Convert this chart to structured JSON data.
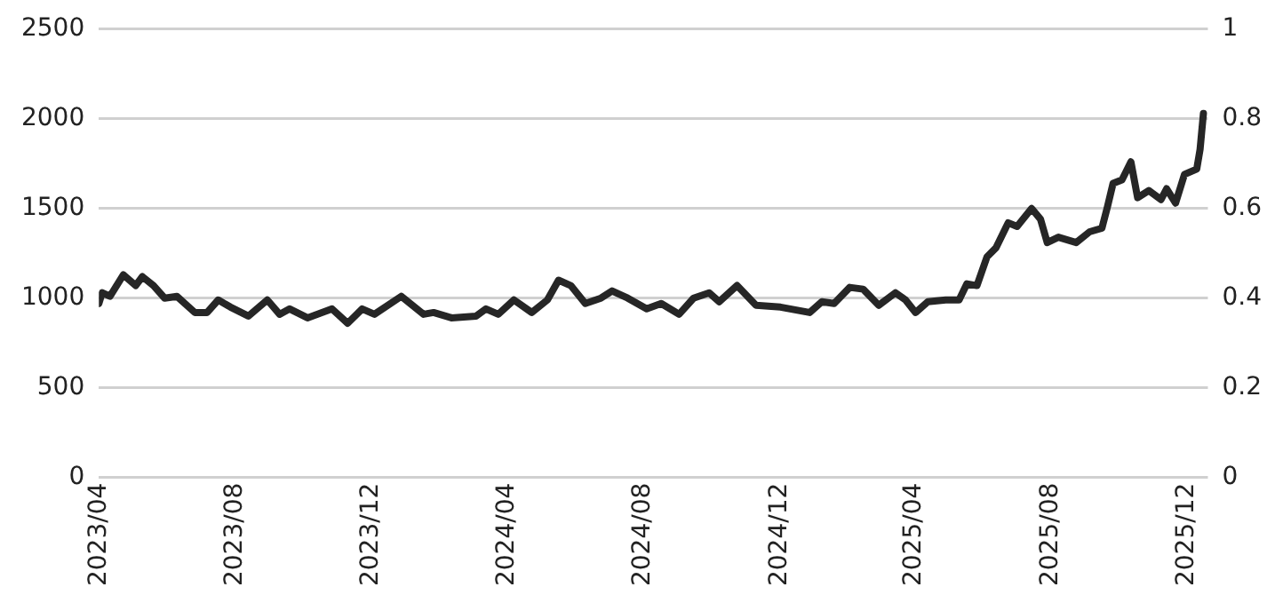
{
  "chart_data": {
    "type": "line",
    "x": [
      "2023-04-01",
      "2023-04-04",
      "2023-04-11",
      "2023-04-23",
      "2023-05-04",
      "2023-05-10",
      "2023-05-20",
      "2023-05-30",
      "2023-06-10",
      "2023-06-26",
      "2023-07-07",
      "2023-07-17",
      "2023-07-28",
      "2023-08-13",
      "2023-08-30",
      "2023-09-10",
      "2023-09-19",
      "2023-10-05",
      "2023-10-27",
      "2023-11-10",
      "2023-11-23",
      "2023-12-04",
      "2023-12-28",
      "2024-01-17",
      "2024-01-26",
      "2024-02-11",
      "2024-03-04",
      "2024-03-13",
      "2024-03-24",
      "2024-04-07",
      "2024-04-23",
      "2024-05-07",
      "2024-05-17",
      "2024-05-28",
      "2024-06-10",
      "2024-06-24",
      "2024-07-04",
      "2024-07-18",
      "2024-08-04",
      "2024-08-17",
      "2024-09-02",
      "2024-09-15",
      "2024-09-29",
      "2024-10-08",
      "2024-10-24",
      "2024-11-10",
      "2024-12-02",
      "2024-12-28",
      "2025-01-08",
      "2025-01-19",
      "2025-02-02",
      "2025-02-14",
      "2025-02-28",
      "2025-03-15",
      "2025-03-24",
      "2025-04-02",
      "2025-04-13",
      "2025-04-29",
      "2025-05-11",
      "2025-05-18",
      "2025-05-27",
      "2025-06-05",
      "2025-06-13",
      "2025-06-24",
      "2025-07-02",
      "2025-07-15",
      "2025-07-23",
      "2025-07-29",
      "2025-08-08",
      "2025-08-24",
      "2025-09-05",
      "2025-09-16",
      "2025-09-21",
      "2025-09-26",
      "2025-10-04",
      "2025-10-12",
      "2025-10-18",
      "2025-10-28",
      "2025-11-08",
      "2025-11-13",
      "2025-11-21",
      "2025-11-29",
      "2025-12-10",
      "2025-12-13",
      "2025-12-16"
    ],
    "series": [
      {
        "color": "#262626",
        "values": [
          970,
          1030,
          1010,
          1130,
          1070,
          1120,
          1070,
          1000,
          1010,
          920,
          920,
          990,
          950,
          900,
          990,
          910,
          940,
          890,
          940,
          860,
          940,
          910,
          1010,
          910,
          920,
          890,
          900,
          940,
          910,
          990,
          920,
          990,
          1100,
          1070,
          970,
          1000,
          1040,
          1000,
          940,
          970,
          910,
          1000,
          1030,
          980,
          1070,
          960,
          950,
          920,
          980,
          970,
          1060,
          1050,
          960,
          1030,
          990,
          920,
          980,
          990,
          990,
          1080,
          1070,
          1230,
          1280,
          1420,
          1400,
          1500,
          1440,
          1310,
          1340,
          1310,
          1370,
          1390,
          1510,
          1640,
          1660,
          1760,
          1560,
          1600,
          1550,
          1610,
          1530,
          1690,
          1720,
          1830,
          2030
        ]
      }
    ],
    "xlim": [
      "2023-04-01",
      "2025-12-20"
    ],
    "xticks": [
      {
        "value": "2023-04-01",
        "label": "2023/04"
      },
      {
        "value": "2023-08-01",
        "label": "2023/08"
      },
      {
        "value": "2023-12-01",
        "label": "2023/12"
      },
      {
        "value": "2024-04-01",
        "label": "2024/04"
      },
      {
        "value": "2024-08-01",
        "label": "2024/08"
      },
      {
        "value": "2024-12-01",
        "label": "2024/12"
      },
      {
        "value": "2025-04-01",
        "label": "2025/04"
      },
      {
        "value": "2025-08-01",
        "label": "2025/08"
      },
      {
        "value": "2025-12-01",
        "label": "2025/12"
      }
    ],
    "ylim": [
      0,
      2500
    ],
    "yticks": [
      0,
      500,
      1000,
      1500,
      2000,
      2500
    ],
    "y2lim": [
      0,
      1
    ],
    "y2ticks": [
      0,
      0.2,
      0.4,
      0.6,
      0.8,
      1
    ],
    "grid": "y",
    "marker": "none",
    "line_style": "solid"
  }
}
